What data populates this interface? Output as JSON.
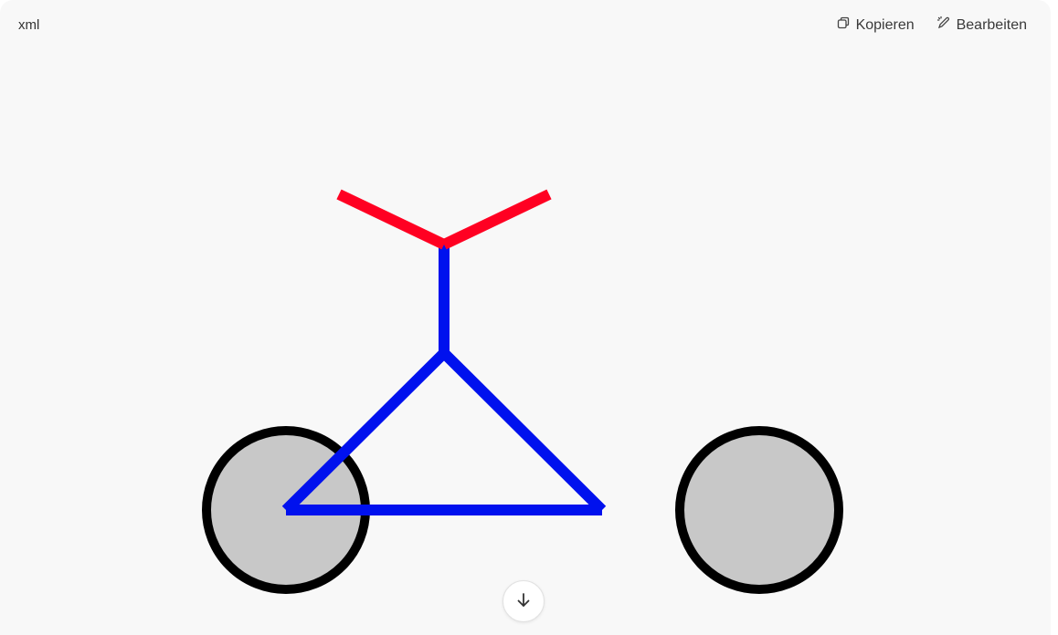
{
  "code_block": {
    "language": "xml",
    "copy_label": "Kopieren",
    "edit_label": "Bearbeiten"
  },
  "icons": {
    "copy": "copy-icon",
    "edit": "pencil-icon",
    "scroll": "arrow-down-icon"
  },
  "colors": {
    "handlebar": "#ff0022",
    "frame": "#0011ee",
    "wheel_fill": "#c8c8c8",
    "wheel_stroke": "#000000",
    "background": "#f8f8f8"
  }
}
